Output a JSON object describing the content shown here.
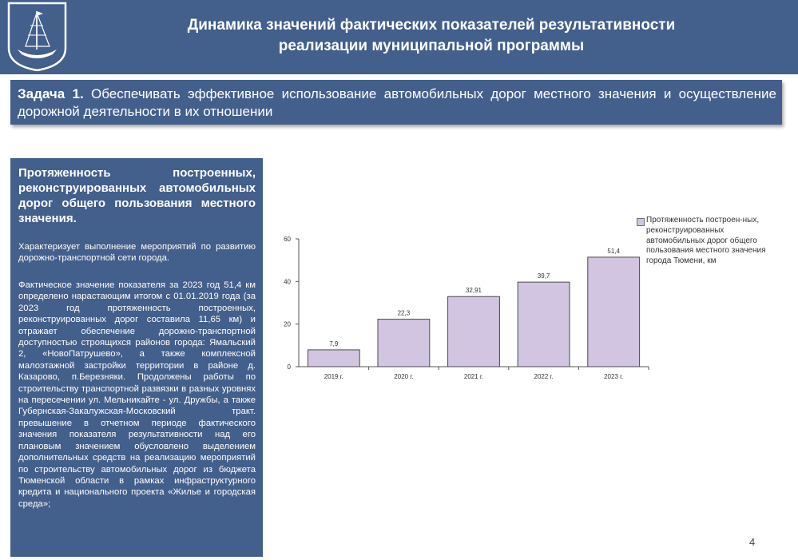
{
  "header": {
    "title": "Динамика значений фактических показателей результативности\nреализации муниципальной программы"
  },
  "task": {
    "label": "Задача 1.",
    "text": " Обеспечивать эффективное использование автомобильных дорог местного значения и осуществление дорожной деятельности в их отношении"
  },
  "indicator": {
    "title": "Протяженность построенных, реконструированных автомобильных дорог общего пользования местного значения.",
    "description": "Характеризует выполнение мероприятий по развитию дорожно-транспортной сети города.",
    "body": "Фактическое значение показателя за 2023 год 51,4 км определено нарастающим итогом с 01.01.2019 года (за 2023 год протяженность построенных, реконструированных дорог составила 11,65 км) и отражает обеспечение дорожно-транспортной доступностью строящихся районов города: Ямальский 2, «НовоПатрушево», а также комплексной малоэтажной застройки территории в районе д. Казарово, п.Березняки. Продолжены работы по строительству транспортной развязки в разных уровнях на пересечении ул. Мельникайте - ул. Дружбы, а также Губернская-Закалужская-Московский тракт. превышение в отчетном периоде фактического значения показателя результативности над его плановым значением обусловлено выделением дополнительных средств на реализацию мероприятий по строительству автомобильных дорог из бюджета Тюменской области в рамках инфраструктурного кредита и национального проекта «Жилье и городская среда»;"
  },
  "chart_data": {
    "type": "bar",
    "categories": [
      "2019 г.",
      "2020 г.",
      "2021 г.",
      "2022 г.",
      "2023 г."
    ],
    "values": [
      7.9,
      22.3,
      32.91,
      39.7,
      51.4
    ],
    "data_labels": [
      "7,9",
      "22,3",
      "32,91",
      "39,7",
      "51,4"
    ],
    "ylim": [
      0,
      60
    ],
    "yticks": [
      0,
      20,
      40,
      60
    ],
    "bar_color": "#d2c5e1",
    "legend": "Протяженность построен-ных, реконструированных автомобильных дорог общего пользования местного значения города Тюмени, км",
    "legend_position": "right",
    "grid": false
  },
  "page_number": "4",
  "colors": {
    "panel": "#435f8b",
    "bar_fill": "#d2c5e1"
  }
}
